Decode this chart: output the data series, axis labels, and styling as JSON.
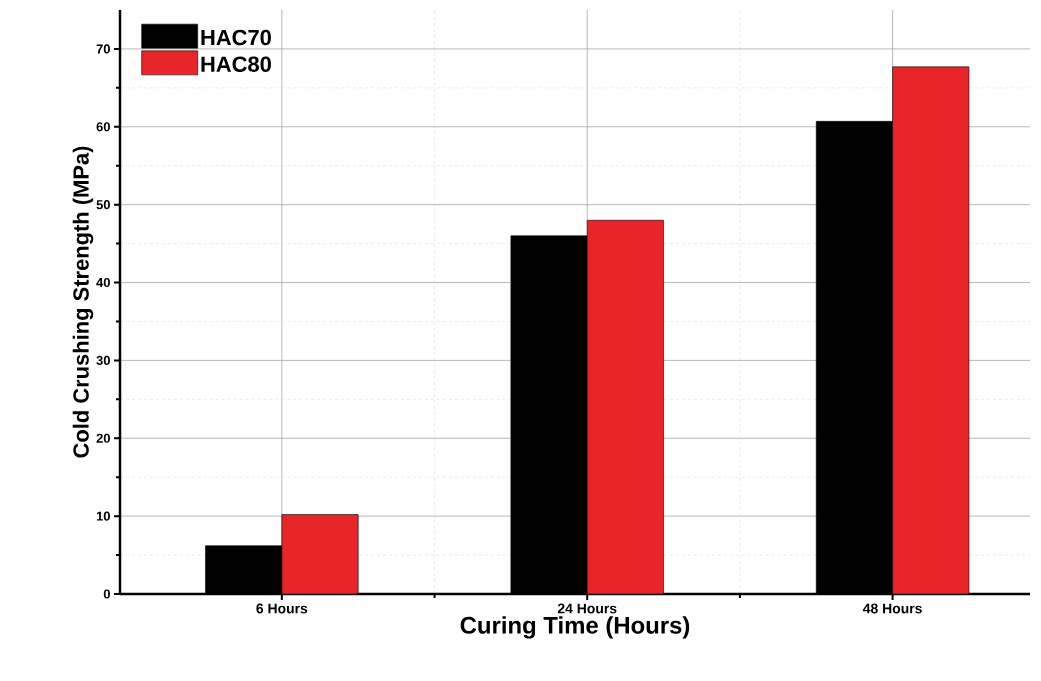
{
  "chart_data": {
    "type": "bar",
    "xlabel": "Curing Time (Hours)",
    "ylabel": "Cold Crushing Strength (MPa)",
    "categories": [
      "6 Hours",
      "24 Hours",
      "48 Hours"
    ],
    "series": [
      {
        "name": "HAC70",
        "color": "#000000",
        "values": [
          6.2,
          46,
          60.7
        ]
      },
      {
        "name": "HAC80",
        "color": "#e8262a",
        "values": [
          10.2,
          48,
          67.7
        ]
      }
    ],
    "ylim": [
      0,
      75
    ],
    "yticks": [
      0,
      10,
      20,
      30,
      40,
      50,
      60,
      70
    ],
    "grid": true,
    "legend": "top left"
  }
}
